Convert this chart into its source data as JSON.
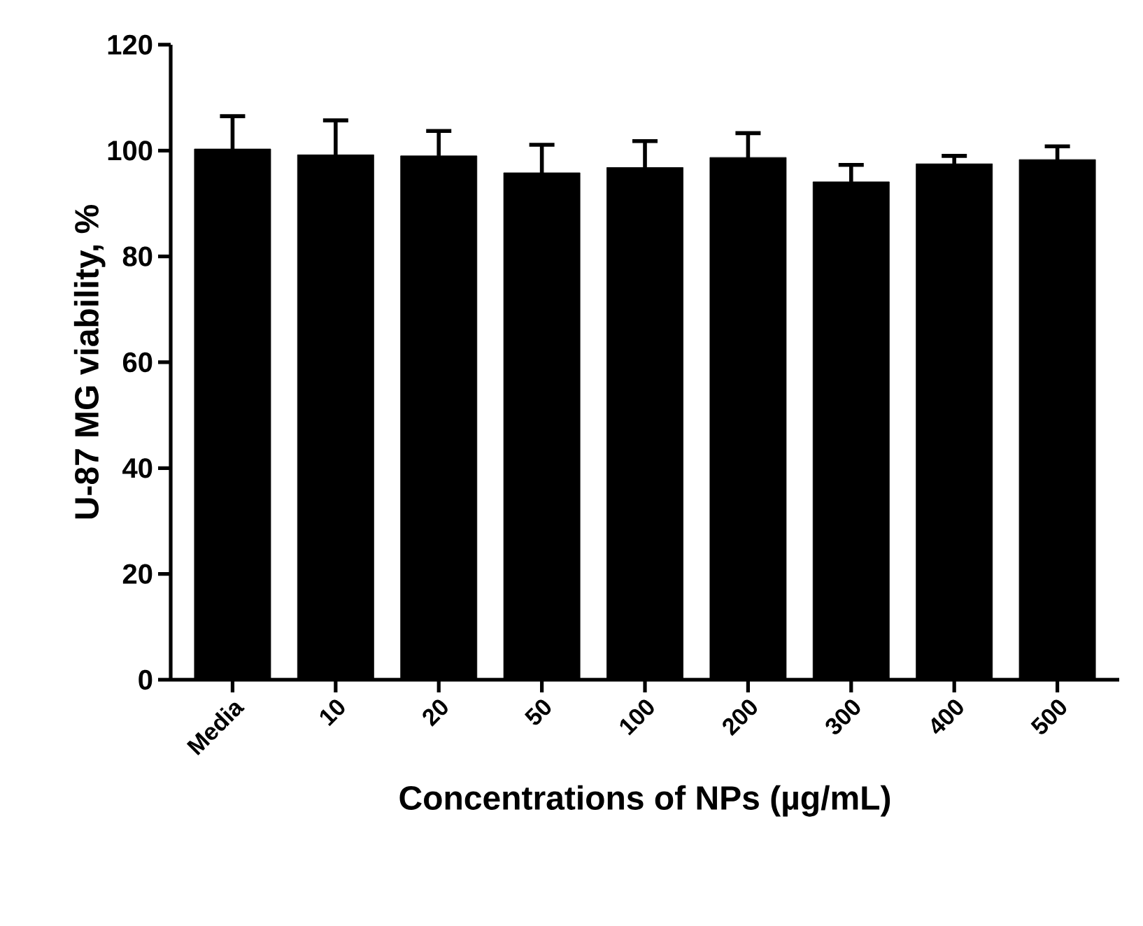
{
  "chart_data": {
    "type": "bar",
    "xlabel": "Concentrations of NPs (µg/mL)",
    "ylabel": "U-87 MG viability, %",
    "categories": [
      "Media",
      "10",
      "20",
      "50",
      "100",
      "200",
      "300",
      "400",
      "500"
    ],
    "values": [
      100.3,
      99.2,
      99.0,
      95.8,
      96.8,
      98.7,
      94.1,
      97.5,
      98.3
    ],
    "errors": [
      6.2,
      6.5,
      4.7,
      5.3,
      5.0,
      4.6,
      3.2,
      1.5,
      2.5
    ],
    "color": "#000000",
    "ylim": [
      0,
      120
    ],
    "yticks": [
      0,
      20,
      40,
      60,
      80,
      100,
      120
    ],
    "grid": false
  }
}
